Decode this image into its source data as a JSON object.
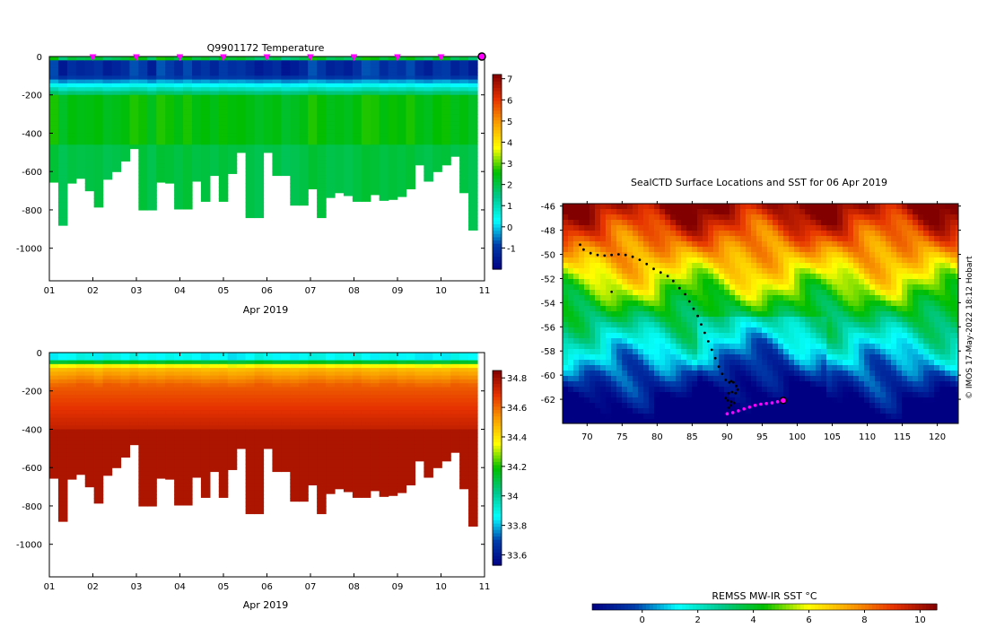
{
  "chart_data": [
    {
      "type": "heatmap",
      "title": "Q9901172  Temperature",
      "xlabel": "Apr 2019",
      "ylabel": "",
      "x_tick_labels": [
        "01",
        "02",
        "03",
        "04",
        "05",
        "06",
        "07",
        "08",
        "09",
        "10",
        "11"
      ],
      "y_tick_labels": [
        "0",
        "-200",
        "-400",
        "-600",
        "-800",
        "-1000"
      ],
      "y_ticks": [
        0,
        -200,
        -400,
        -600,
        -800,
        -1000
      ],
      "xlim": [
        1,
        11
      ],
      "ylim": [
        -1170,
        0
      ],
      "profile_max_depth_m": [
        655,
        880,
        660,
        635,
        700,
        785,
        640,
        600,
        545,
        480,
        800,
        800,
        655,
        660,
        795,
        795,
        650,
        755,
        620,
        755,
        610,
        500,
        840,
        840,
        500,
        620,
        620,
        775,
        775,
        690,
        840,
        735,
        710,
        725,
        755,
        755,
        720,
        750,
        745,
        730,
        690,
        565,
        650,
        600,
        565,
        520,
        710,
        905
      ],
      "colorbar": {
        "min": -2,
        "max": 7.2,
        "ticks": [
          -1,
          0,
          1,
          2,
          3,
          4,
          5,
          6,
          7
        ],
        "tick_labels": [
          "-1",
          "0",
          "1",
          "2",
          "3",
          "4",
          "5",
          "6",
          "7"
        ]
      },
      "markers": {
        "label": "profile dates",
        "x": [
          2,
          3,
          4,
          5,
          6,
          7,
          8,
          9,
          10
        ],
        "color": "#ff00ff"
      },
      "end_marker": {
        "x": 11,
        "color": "#ff00ff"
      }
    },
    {
      "type": "heatmap",
      "title": "",
      "xlabel": "Apr 2019",
      "ylabel": "",
      "x_tick_labels": [
        "01",
        "02",
        "03",
        "04",
        "05",
        "06",
        "07",
        "08",
        "09",
        "10",
        "11"
      ],
      "y_tick_labels": [
        "0",
        "-200",
        "-400",
        "-600",
        "-800",
        "-1000"
      ],
      "y_ticks": [
        0,
        -200,
        -400,
        -600,
        -800,
        -1000
      ],
      "xlim": [
        1,
        11
      ],
      "ylim": [
        -1170,
        0
      ],
      "profile_max_depth_m": [
        655,
        880,
        660,
        635,
        700,
        785,
        640,
        600,
        545,
        480,
        800,
        800,
        655,
        660,
        795,
        795,
        650,
        755,
        620,
        755,
        610,
        500,
        840,
        840,
        500,
        620,
        620,
        775,
        775,
        690,
        840,
        735,
        710,
        725,
        755,
        755,
        720,
        750,
        745,
        730,
        690,
        565,
        650,
        600,
        565,
        520,
        710,
        905
      ],
      "colorbar": {
        "min": 33.53,
        "max": 34.85,
        "ticks": [
          33.6,
          33.8,
          34,
          34.2,
          34.4,
          34.6,
          34.8
        ],
        "tick_labels": [
          "33.6",
          "33.8",
          "34",
          "34.2",
          "34.4",
          "34.6",
          "34.8"
        ]
      }
    },
    {
      "type": "map",
      "title": "SealCTD Surface Locations and SST for 06 Apr 2019",
      "xlabel": "",
      "ylabel": "",
      "xlim": [
        66.5,
        123
      ],
      "ylim": [
        -64,
        -45.8
      ],
      "x_ticks": [
        70,
        75,
        80,
        85,
        90,
        95,
        100,
        105,
        110,
        115,
        120
      ],
      "x_tick_labels": [
        "70",
        "75",
        "80",
        "85",
        "90",
        "95",
        "100",
        "105",
        "110",
        "115",
        "120"
      ],
      "y_ticks": [
        -46,
        -48,
        -50,
        -52,
        -54,
        -56,
        -58,
        -60,
        -62
      ],
      "y_tick_labels": [
        "-46",
        "-48",
        "-50",
        "-52",
        "-54",
        "-56",
        "-58",
        "-60",
        "-62"
      ],
      "track_lon": [
        69,
        69.5,
        70.5,
        71.5,
        72.5,
        73.5,
        74.5,
        75.5,
        76.5,
        77.5,
        78.5,
        79.5,
        80.5,
        81.5,
        82.3,
        83.2,
        84,
        84.6,
        85.2,
        85.8,
        86.3,
        86.8,
        87.3,
        87.8,
        88.3,
        88.8,
        89.3,
        89.8,
        90.3,
        90.6,
        90.9,
        91.3,
        91.5,
        91.2,
        90.7,
        90.2,
        89.8,
        90.1,
        90.6,
        91,
        90.5,
        90.2
      ],
      "track_lat": [
        -49.2,
        -49.6,
        -49.9,
        -50.05,
        -50.1,
        -50.05,
        -50,
        -50.05,
        -50.2,
        -50.45,
        -50.8,
        -51.2,
        -51.5,
        -51.8,
        -52.2,
        -52.8,
        -53.3,
        -53.9,
        -54.5,
        -55.1,
        -55.8,
        -56.5,
        -57.2,
        -57.9,
        -58.6,
        -59.3,
        -59.9,
        -60.4,
        -60.6,
        -60.5,
        -60.6,
        -60.9,
        -61.2,
        -61.5,
        -61.4,
        -61.5,
        -61.9,
        -62.1,
        -62.2,
        -62.3,
        -62.5,
        -62.7
      ],
      "recent_lon": [
        90,
        90.8,
        91.6,
        92.4,
        93.2,
        94,
        94.8,
        95.6,
        96.4,
        97.2,
        98
      ],
      "recent_lat": [
        -63.2,
        -63.1,
        -62.95,
        -62.8,
        -62.65,
        -62.5,
        -62.4,
        -62.35,
        -62.3,
        -62.2,
        -62.1
      ],
      "current_position": {
        "lon": 98,
        "lat": -62.1,
        "color": "#ff00ff"
      },
      "extra_points": [
        {
          "lon": 73.5,
          "lat": -53.1
        }
      ],
      "colorbar": {
        "label": "REMSS MW-IR SST °C",
        "min": -1.8,
        "max": 10.6,
        "ticks": [
          0,
          2,
          4,
          6,
          8,
          10
        ],
        "tick_labels": [
          "0",
          "2",
          "4",
          "6",
          "8",
          "10"
        ]
      }
    }
  ],
  "credit": "© IMOS 17-May-2022 18:12 Hobart",
  "colors": {
    "track": "#000000",
    "marker": "#ff00ff",
    "axis": "#000000",
    "background": "#ffffff"
  }
}
